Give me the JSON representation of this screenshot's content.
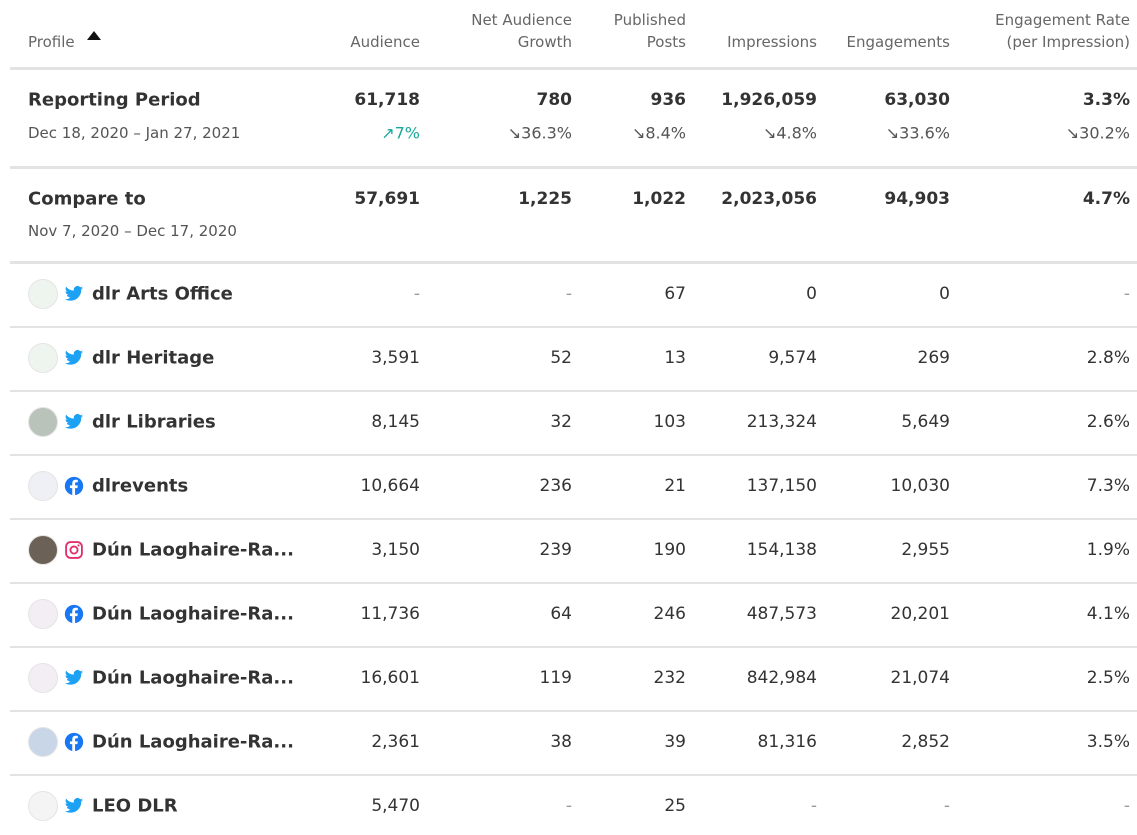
{
  "table": {
    "headers": [
      [
        "Profile"
      ],
      [
        "Audience"
      ],
      [
        "Net Audience",
        "Growth"
      ],
      [
        "Published",
        "Posts"
      ],
      [
        "Impressions"
      ],
      [
        "Engagements"
      ],
      [
        "Engagement Rate",
        "(per Impression)"
      ]
    ],
    "summary": [
      {
        "label": "Reporting Period",
        "dates": "Dec 18, 2020 – Jan 27, 2021",
        "values": [
          "61,718",
          "780",
          "936",
          "1,926,059",
          "63,030",
          "3.3%"
        ],
        "changes": [
          "↗7%",
          "↘36.3%",
          "↘8.4%",
          "↘4.8%",
          "↘33.6%",
          "↘30.2%"
        ]
      },
      {
        "label": "Compare to",
        "dates": "Nov 7, 2020 – Dec 17, 2020",
        "values": [
          "57,691",
          "1,225",
          "1,022",
          "2,023,056",
          "94,903",
          "4.7%"
        ]
      }
    ],
    "rows": [
      {
        "name": "dlr Arts Office",
        "values": [
          "-",
          "-",
          "67",
          "0",
          "0",
          "-"
        ]
      },
      {
        "name": "dlr Heritage",
        "values": [
          "3,591",
          "52",
          "13",
          "9,574",
          "269",
          "2.8%"
        ]
      },
      {
        "name": "dlr Libraries",
        "values": [
          "8,145",
          "32",
          "103",
          "213,324",
          "5,649",
          "2.6%"
        ]
      },
      {
        "name": "dlrevents",
        "values": [
          "10,664",
          "236",
          "21",
          "137,150",
          "10,030",
          "7.3%"
        ]
      },
      {
        "name": "Dún Laoghaire-Ra...",
        "values": [
          "3,150",
          "239",
          "190",
          "154,138",
          "2,955",
          "1.9%"
        ]
      },
      {
        "name": "Dún Laoghaire-Ra...",
        "values": [
          "11,736",
          "64",
          "246",
          "487,573",
          "20,201",
          "4.1%"
        ]
      },
      {
        "name": "Dún Laoghaire-Ra...",
        "values": [
          "16,601",
          "119",
          "232",
          "842,984",
          "21,074",
          "2.5%"
        ]
      },
      {
        "name": "Dún Laoghaire-Ra...",
        "values": [
          "2,361",
          "38",
          "39",
          "81,316",
          "2,852",
          "3.5%"
        ]
      },
      {
        "name": "LEO DLR",
        "values": [
          "5,470",
          "-",
          "25",
          "-",
          "-",
          "-"
        ]
      }
    ]
  }
}
